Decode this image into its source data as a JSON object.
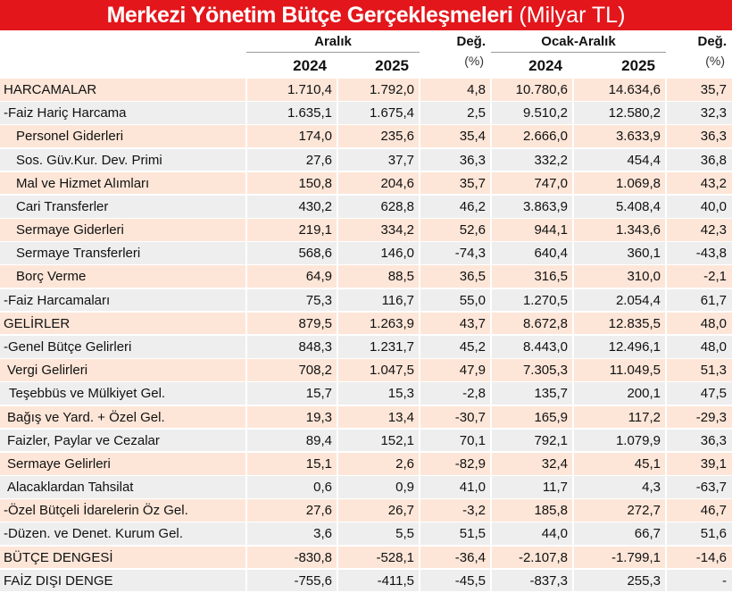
{
  "title": {
    "main": "Merkezi Yönetim Bütçe Gerçekleşmeleri",
    "unit": "(Milyar TL)"
  },
  "table": {
    "group_headers": [
      "Aralık",
      "Değ.",
      "Ocak-Aralık",
      "Değ."
    ],
    "sub_headers": [
      "2024",
      "2025",
      "(%)",
      "2024",
      "2025",
      "(%)"
    ],
    "rows": [
      [
        "HARCAMALAR",
        "1.710,4",
        "1.792,0",
        "4,8",
        "10.780,6",
        "14.634,6",
        "35,7"
      ],
      [
        "-Faiz Hariç Harcama",
        "1.635,1",
        "1.675,4",
        "2,5",
        "9.510,2",
        "12.580,2",
        "32,3"
      ],
      [
        "Personel Giderleri",
        "174,0",
        "235,6",
        "35,4",
        "2.666,0",
        "3.633,9",
        "36,3"
      ],
      [
        "Sos. Güv.Kur. Dev. Primi",
        "27,6",
        "37,7",
        "36,3",
        "332,2",
        "454,4",
        "36,8"
      ],
      [
        "Mal ve Hizmet Alımları",
        "150,8",
        "204,6",
        "35,7",
        "747,0",
        "1.069,8",
        "43,2"
      ],
      [
        "Cari Transferler",
        "430,2",
        "628,8",
        "46,2",
        "3.863,9",
        "5.408,4",
        "40,0"
      ],
      [
        "Sermaye Giderleri",
        "219,1",
        "334,2",
        "52,6",
        "944,1",
        "1.343,6",
        "42,3"
      ],
      [
        "Sermaye Transferleri",
        "568,6",
        "146,0",
        "-74,3",
        "640,4",
        "360,1",
        "-43,8"
      ],
      [
        "Borç Verme",
        "64,9",
        "88,5",
        "36,5",
        "316,5",
        "310,0",
        "-2,1"
      ],
      [
        "-Faiz Harcamaları",
        "75,3",
        "116,7",
        "55,0",
        "1.270,5",
        "2.054,4",
        "61,7"
      ],
      [
        "GELİRLER",
        "879,5",
        "1.263,9",
        "43,7",
        "8.672,8",
        "12.835,5",
        "48,0"
      ],
      [
        "-Genel Bütçe Gelirleri",
        "848,3",
        "1.231,7",
        "45,2",
        "8.443,0",
        "12.496,1",
        "48,0"
      ],
      [
        "Vergi Gelirleri",
        "708,2",
        "1.047,5",
        "47,9",
        "7.305,3",
        "11.049,5",
        "51,3"
      ],
      [
        "Teşebbüs ve Mülkiyet Gel.",
        "15,7",
        "15,3",
        "-2,8",
        "135,7",
        "200,1",
        "47,5"
      ],
      [
        "Bağış ve Yard. + Özel Gel.",
        "19,3",
        "13,4",
        "-30,7",
        "165,9",
        "117,2",
        "-29,3"
      ],
      [
        "Faizler, Paylar ve Cezalar",
        "89,4",
        "152,1",
        "70,1",
        "792,1",
        "1.079,9",
        "36,3"
      ],
      [
        "Sermaye Gelirleri",
        "15,1",
        "2,6",
        "-82,9",
        "32,4",
        "45,1",
        "39,1"
      ],
      [
        "Alacaklardan Tahsilat",
        "0,6",
        "0,9",
        "41,0",
        "11,7",
        "4,3",
        "-63,7"
      ],
      [
        "-Özel Bütçeli İdarelerin Öz Gel.",
        "27,6",
        "26,7",
        "-3,2",
        "185,8",
        "272,7",
        "46,7"
      ],
      [
        "-Düzen. ve Denet. Kurum Gel.",
        "3,6",
        "5,5",
        "51,5",
        "44,0",
        "66,7",
        "51,6"
      ],
      [
        "BÜTÇE DENGESİ",
        "-830,8",
        "-528,1",
        "-36,4",
        "-2.107,8",
        "-1.799,1",
        "-14,6"
      ],
      [
        "FAİZ DIŞI DENGE",
        "-755,6",
        "-411,5",
        "-45,5",
        "-837,3",
        "255,3",
        "-"
      ]
    ]
  }
}
